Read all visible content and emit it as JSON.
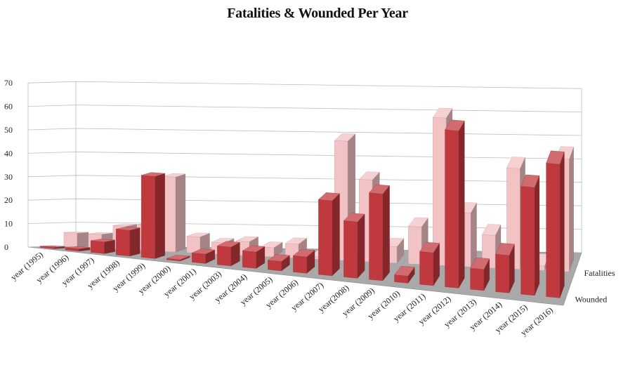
{
  "chart_data": {
    "type": "bar",
    "title": "Fatalities & Wounded Per Year",
    "xlabel": "",
    "ylabel": "",
    "ylim": [
      0,
      70
    ],
    "y_ticks": [
      "0",
      "10",
      "20",
      "30",
      "40",
      "50",
      "60",
      "70"
    ],
    "grid": true,
    "categories": [
      "year (1995)",
      "year (1996)",
      "year (1997)",
      "year (1998)",
      "year (1999)",
      "year (2000)",
      "year (2001)",
      "year (2003)",
      "year (2004)",
      "year (2005)",
      "year (2006)",
      "year (2007)",
      "year(2008)",
      "year (2009)",
      "year (2010)",
      "year (2011)",
      "year (2012)",
      "year (2013)",
      "year (2014)",
      "year (2015)",
      "year (2016)"
    ],
    "series": [
      {
        "name": "Fatalities",
        "color": "#f3c2c5",
        "values": [
          6,
          6,
          10,
          11,
          32,
          7,
          5,
          6,
          4,
          6,
          1,
          51,
          35,
          7,
          16,
          63,
          23,
          14,
          43,
          2,
          48
        ]
      },
      {
        "name": "Wounded",
        "color": "#c0393f",
        "values": [
          0,
          1,
          5,
          11,
          35,
          0,
          4,
          8,
          7,
          4,
          7,
          32,
          24,
          37,
          3,
          14,
          67,
          9,
          16,
          46,
          57
        ]
      }
    ]
  }
}
